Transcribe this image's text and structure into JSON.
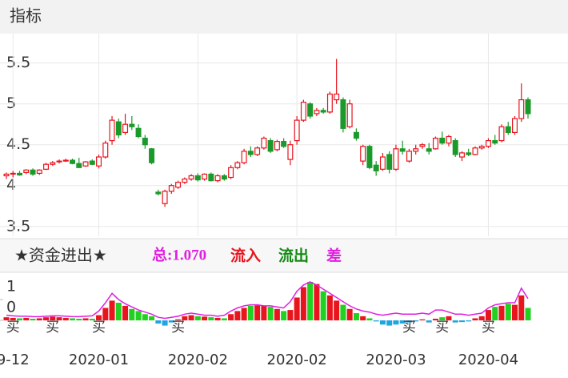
{
  "header": {
    "title": "指标"
  },
  "chart_data": [
    {
      "type": "candlestick",
      "categories": [
        null,
        "9-12",
        null,
        null,
        null,
        null,
        null,
        null,
        null,
        null,
        null,
        null,
        null,
        null,
        "2020-01",
        null,
        null,
        null,
        null,
        null,
        null,
        null,
        null,
        null,
        null,
        null,
        null,
        null,
        null,
        "2020-02",
        null,
        null,
        null,
        null,
        null,
        null,
        null,
        null,
        null,
        null,
        null,
        null,
        null,
        null,
        "2020-02",
        null,
        null,
        null,
        null,
        null,
        null,
        null,
        null,
        null,
        null,
        null,
        null,
        null,
        null,
        "2020-03",
        null,
        null,
        null,
        null,
        null,
        null,
        null,
        null,
        null,
        null,
        null,
        null,
        null,
        "2020-04",
        null,
        null,
        null,
        null,
        null,
        null
      ],
      "open": [
        4.12,
        4.14,
        4.15,
        4.16,
        4.19,
        4.15,
        4.2,
        4.26,
        4.29,
        4.3,
        4.31,
        4.27,
        4.24,
        4.3,
        4.24,
        4.35,
        4.55,
        4.78,
        4.65,
        4.75,
        4.7,
        4.58,
        4.45,
        3.92,
        3.78,
        3.93,
        3.98,
        4.04,
        4.08,
        4.12,
        4.08,
        4.14,
        4.06,
        4.12,
        4.1,
        4.22,
        4.28,
        4.42,
        4.38,
        4.46,
        4.55,
        4.44,
        4.54,
        4.32,
        4.55,
        4.8,
        5.0,
        4.88,
        4.92,
        4.9,
        5.05,
        5.05,
        4.72,
        4.65,
        4.3,
        4.48,
        4.25,
        4.2,
        4.38,
        4.2,
        4.45,
        4.3,
        4.42,
        4.48,
        4.45,
        4.45,
        4.58,
        4.52,
        4.55,
        4.35,
        4.4,
        4.38,
        4.46,
        4.48,
        4.55,
        4.55,
        4.72,
        4.65,
        4.82,
        5.05
      ],
      "high": [
        4.16,
        4.18,
        4.18,
        4.2,
        4.21,
        4.2,
        4.28,
        4.3,
        4.32,
        4.33,
        4.33,
        4.34,
        4.3,
        4.32,
        4.38,
        4.55,
        4.85,
        4.82,
        4.88,
        4.85,
        4.75,
        4.62,
        4.46,
        3.95,
        3.95,
        4.02,
        4.06,
        4.1,
        4.14,
        4.15,
        4.15,
        4.16,
        4.14,
        4.14,
        4.25,
        4.3,
        4.45,
        4.48,
        4.48,
        4.6,
        4.58,
        4.56,
        4.58,
        4.55,
        4.85,
        5.05,
        5.02,
        4.95,
        4.95,
        5.15,
        5.55,
        5.08,
        5.05,
        4.7,
        4.5,
        4.5,
        4.3,
        4.4,
        4.42,
        4.5,
        4.55,
        4.45,
        4.5,
        4.52,
        4.52,
        4.6,
        4.66,
        4.62,
        4.58,
        4.42,
        4.45,
        4.48,
        4.5,
        4.58,
        4.62,
        4.75,
        4.78,
        4.85,
        5.25,
        5.08
      ],
      "low": [
        4.08,
        4.1,
        4.12,
        4.14,
        4.12,
        4.13,
        4.19,
        4.24,
        4.27,
        4.29,
        4.26,
        4.22,
        4.23,
        4.25,
        4.21,
        4.33,
        4.5,
        4.58,
        4.62,
        4.68,
        4.58,
        4.45,
        4.26,
        3.88,
        3.74,
        3.9,
        3.96,
        4.02,
        4.06,
        4.05,
        4.06,
        4.05,
        4.04,
        4.06,
        4.08,
        4.2,
        4.26,
        4.35,
        4.36,
        4.44,
        4.4,
        4.42,
        4.46,
        4.25,
        4.5,
        4.78,
        4.82,
        4.85,
        4.88,
        4.88,
        5.0,
        4.65,
        4.7,
        4.55,
        4.25,
        4.2,
        4.12,
        4.18,
        4.15,
        4.18,
        4.38,
        4.28,
        4.38,
        4.45,
        4.38,
        4.44,
        4.5,
        4.48,
        4.35,
        4.3,
        4.36,
        4.37,
        4.44,
        4.46,
        4.5,
        4.53,
        4.62,
        4.62,
        4.78,
        4.82
      ],
      "close": [
        4.14,
        4.15,
        4.13,
        4.19,
        4.14,
        4.19,
        4.26,
        4.28,
        4.3,
        4.31,
        4.27,
        4.22,
        4.29,
        4.26,
        4.35,
        4.52,
        4.8,
        4.62,
        4.75,
        4.72,
        4.6,
        4.5,
        4.28,
        3.9,
        3.93,
        4.0,
        4.04,
        4.08,
        4.12,
        4.07,
        4.14,
        4.06,
        4.12,
        4.08,
        4.22,
        4.28,
        4.42,
        4.38,
        4.46,
        4.58,
        4.42,
        4.54,
        4.48,
        4.5,
        4.8,
        5.02,
        4.85,
        4.92,
        4.9,
        5.12,
        5.12,
        4.7,
        5.0,
        4.58,
        4.48,
        4.22,
        4.18,
        4.35,
        4.2,
        4.45,
        4.42,
        4.42,
        4.45,
        4.5,
        4.42,
        4.58,
        4.52,
        4.6,
        4.38,
        4.4,
        4.38,
        4.46,
        4.48,
        4.55,
        4.52,
        4.72,
        4.65,
        4.82,
        5.05,
        4.88
      ],
      "up_color": "#e8141e",
      "down_color": "#1a9a2a",
      "ylim": [
        3.38,
        5.83
      ],
      "yticks": [
        3.5,
        4,
        4.5,
        5,
        5.5
      ],
      "grid": true
    },
    {
      "type": "bar",
      "title": "★资金进出★",
      "total": "总:1.070",
      "legend": [
        {
          "name": "流入",
          "color": "#e8141e"
        },
        {
          "name": "流出",
          "color": "#138a13"
        },
        {
          "name": "差",
          "color": "#e020e0"
        }
      ],
      "signals": [
        null,
        "买",
        null,
        null,
        null,
        null,
        null,
        "买",
        null,
        null,
        null,
        null,
        null,
        null,
        "买",
        null,
        null,
        null,
        null,
        null,
        null,
        null,
        null,
        null,
        null,
        null,
        "买",
        null,
        null,
        null,
        null,
        null,
        null,
        null,
        null,
        null,
        null,
        null,
        null,
        null,
        null,
        null,
        null,
        null,
        null,
        null,
        null,
        null,
        null,
        null,
        null,
        null,
        null,
        null,
        null,
        null,
        null,
        null,
        null,
        null,
        null,
        "买",
        null,
        null,
        null,
        null,
        "买",
        null,
        null,
        null,
        null,
        null,
        null,
        "买",
        null,
        null,
        null,
        null,
        null,
        null
      ],
      "values": [
        0.15,
        0.12,
        0.1,
        0.12,
        0.08,
        0.1,
        0.15,
        0.18,
        0.15,
        0.12,
        0.1,
        0.08,
        0.1,
        0.08,
        0.25,
        0.6,
        0.95,
        0.85,
        0.7,
        0.55,
        0.45,
        0.3,
        0.2,
        -0.15,
        -0.25,
        -0.1,
        0.05,
        0.2,
        0.25,
        0.2,
        0.18,
        0.15,
        0.12,
        0.1,
        0.3,
        0.45,
        0.6,
        0.7,
        0.72,
        0.7,
        0.65,
        0.55,
        0.45,
        0.5,
        1.1,
        1.6,
        1.85,
        1.75,
        1.4,
        1.2,
        0.95,
        0.75,
        0.55,
        0.35,
        0.2,
        0.1,
        -0.05,
        -0.2,
        -0.25,
        -0.2,
        -0.15,
        -0.1,
        -0.05,
        0.05,
        -0.1,
        0.08,
        0.15,
        0.2,
        -0.1,
        -0.08,
        -0.05,
        0.1,
        0.2,
        0.5,
        0.65,
        0.7,
        0.8,
        0.75,
        1.2,
        0.6
      ],
      "line": [
        0.25,
        0.22,
        0.2,
        0.2,
        0.18,
        0.18,
        0.2,
        0.22,
        0.22,
        0.2,
        0.18,
        0.18,
        0.2,
        0.22,
        0.45,
        0.85,
        1.3,
        1.0,
        0.8,
        0.65,
        0.5,
        0.4,
        0.3,
        0.15,
        0.1,
        0.15,
        0.2,
        0.3,
        0.35,
        0.3,
        0.25,
        0.25,
        0.2,
        0.25,
        0.45,
        0.6,
        0.7,
        0.75,
        0.75,
        0.7,
        0.7,
        0.65,
        0.6,
        0.9,
        1.4,
        1.7,
        1.85,
        1.7,
        1.5,
        1.3,
        1.1,
        0.9,
        0.7,
        0.55,
        0.45,
        0.4,
        0.3,
        0.25,
        0.3,
        0.35,
        0.3,
        0.3,
        0.3,
        0.35,
        0.3,
        0.5,
        0.5,
        0.4,
        0.3,
        0.3,
        0.25,
        0.3,
        0.35,
        0.6,
        0.75,
        0.8,
        0.85,
        0.85,
        1.55,
        1.05
      ],
      "up_color": "#e8141e",
      "down_color": "#22d022",
      "negative_color": "#1fa5e0",
      "line_color": "#e020e0",
      "ylim": [
        -0.96,
        2.12
      ],
      "yticks": [
        0,
        1
      ]
    }
  ]
}
